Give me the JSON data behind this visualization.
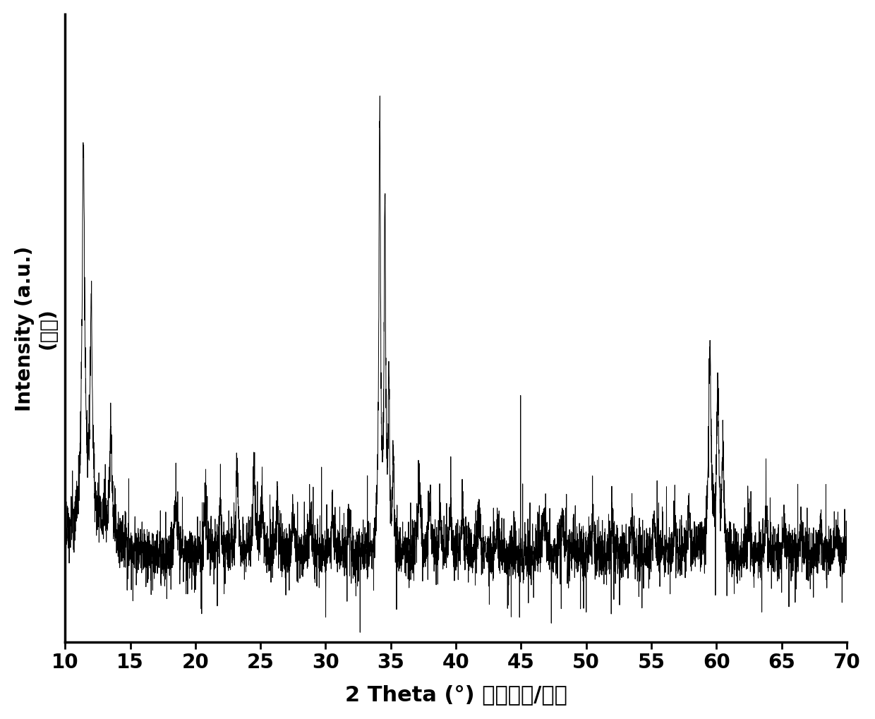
{
  "xlabel": "2 Theta (°) （衍射角/度）",
  "ylabel": "Intensity (a.u.)\n（强度）",
  "xlim": [
    10,
    70
  ],
  "ylim": [
    0,
    1.15
  ],
  "x_ticks": [
    10,
    15,
    20,
    25,
    30,
    35,
    40,
    45,
    50,
    55,
    60,
    65,
    70
  ],
  "background_color": "#ffffff",
  "line_color": "#000000",
  "xlabel_fontsize": 22,
  "ylabel_fontsize": 20,
  "tick_fontsize": 20
}
